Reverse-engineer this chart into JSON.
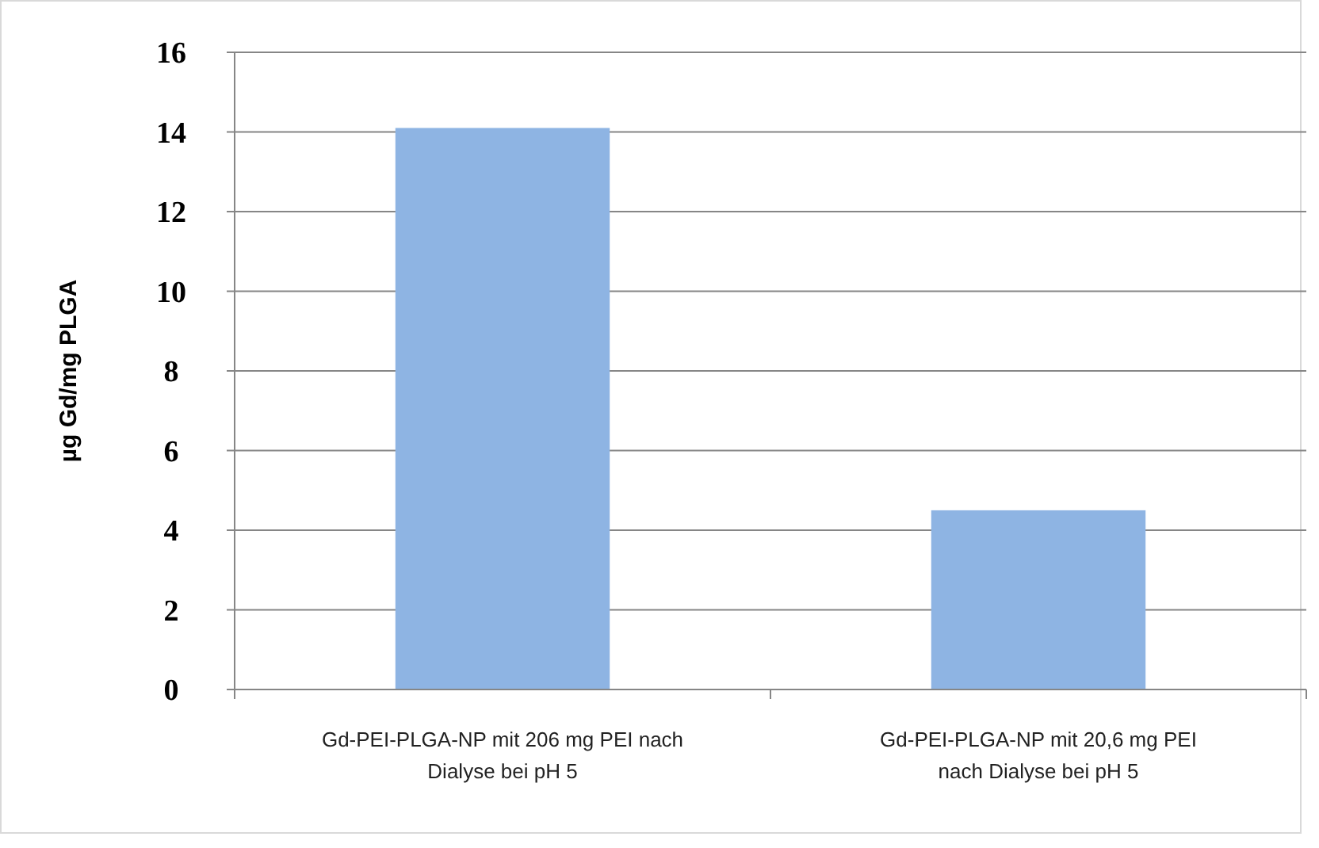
{
  "chart_data": {
    "type": "bar",
    "ylabel": "µg Gd/mg PLGA",
    "categories": [
      "Gd-PEI-PLGA-NP mit 206 mg PEI nach Dialyse  bei pH 5",
      "Gd-PEI-PLGA-NP mit 20,6 mg PEI nach Dialyse  bei pH 5"
    ],
    "values": [
      14.1,
      4.5
    ],
    "color": "#8eb4e3",
    "ylim": [
      0,
      16
    ],
    "yticks": [
      0,
      2,
      4,
      6,
      8,
      10,
      12,
      14,
      16
    ],
    "grid": "y"
  }
}
